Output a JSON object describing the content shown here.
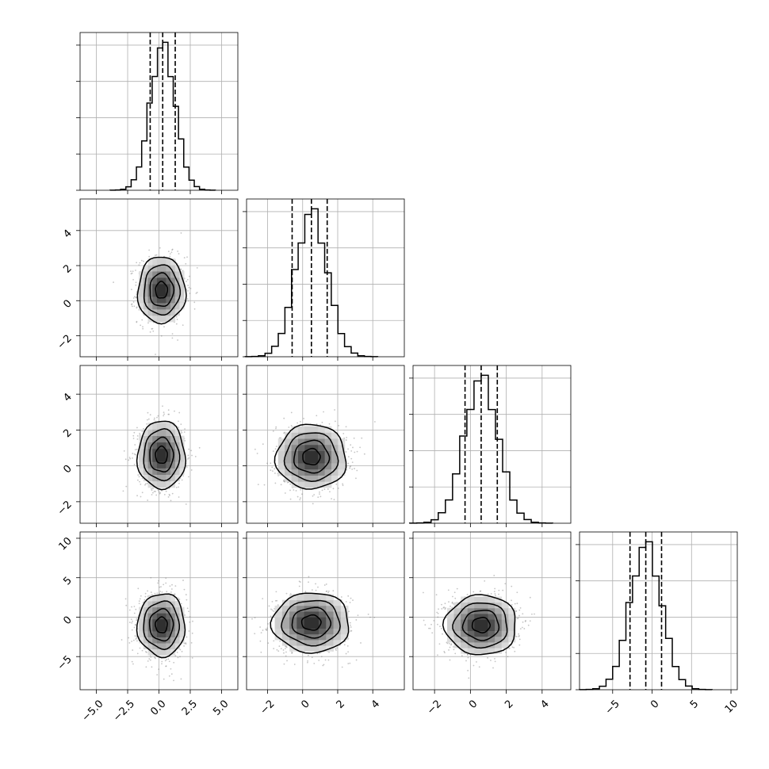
{
  "chart_data": {
    "type": "corner",
    "n_params": 4,
    "ranges": [
      [
        -6.3,
        6.3
      ],
      [
        -3.2,
        5.8
      ],
      [
        -3.2,
        5.6
      ],
      [
        -9.2,
        10.8
      ]
    ],
    "ticks": [
      {
        "values": [
          -5.0,
          -2.5,
          0.0,
          2.5,
          5.0
        ],
        "labels": [
          "−5.0",
          "−2.5",
          "0.0",
          "2.5",
          "5.0"
        ]
      },
      {
        "values": [
          -2,
          0,
          2,
          4
        ],
        "labels": [
          "−2",
          "0",
          "2",
          "4"
        ]
      },
      {
        "values": [
          -2,
          0,
          2,
          4
        ],
        "labels": [
          "−2",
          "0",
          "2",
          "4"
        ]
      },
      {
        "values": [
          -5,
          0,
          5,
          10
        ],
        "labels": [
          "−5",
          "0",
          "5",
          "10"
        ]
      }
    ],
    "grid": true,
    "marginals": [
      {
        "param": 0,
        "mean": 0.3,
        "std": 1.0,
        "quantiles": [
          -0.7,
          0.3,
          1.3
        ]
      },
      {
        "param": 1,
        "mean": 0.5,
        "std": 0.9,
        "quantiles": [
          -0.6,
          0.5,
          1.4
        ]
      },
      {
        "param": 2,
        "mean": 0.6,
        "std": 0.95,
        "quantiles": [
          -0.3,
          0.6,
          1.5
        ]
      },
      {
        "param": 3,
        "mean": -0.8,
        "std": 2.0,
        "quantiles": [
          -2.8,
          -0.8,
          1.2
        ]
      }
    ],
    "pairs": [
      {
        "x_param": 0,
        "y_param": 1,
        "center": [
          0.2,
          0.6
        ],
        "sigma": [
          0.95,
          0.95
        ]
      },
      {
        "x_param": 0,
        "y_param": 2,
        "center": [
          0.2,
          0.6
        ],
        "sigma": [
          0.95,
          0.95
        ]
      },
      {
        "x_param": 1,
        "y_param": 2,
        "center": [
          0.5,
          0.5
        ],
        "sigma": [
          1.0,
          0.9
        ]
      },
      {
        "x_param": 0,
        "y_param": 3,
        "center": [
          0.2,
          -1.0
        ],
        "sigma": [
          0.95,
          2.0
        ]
      },
      {
        "x_param": 1,
        "y_param": 3,
        "center": [
          0.5,
          -0.7
        ],
        "sigma": [
          1.1,
          1.9
        ]
      },
      {
        "x_param": 2,
        "y_param": 3,
        "center": [
          0.6,
          -1.0
        ],
        "sigma": [
          1.0,
          1.9
        ]
      }
    ],
    "contour_levels": [
      0.5,
      1.0,
      1.5,
      2.0
    ]
  }
}
